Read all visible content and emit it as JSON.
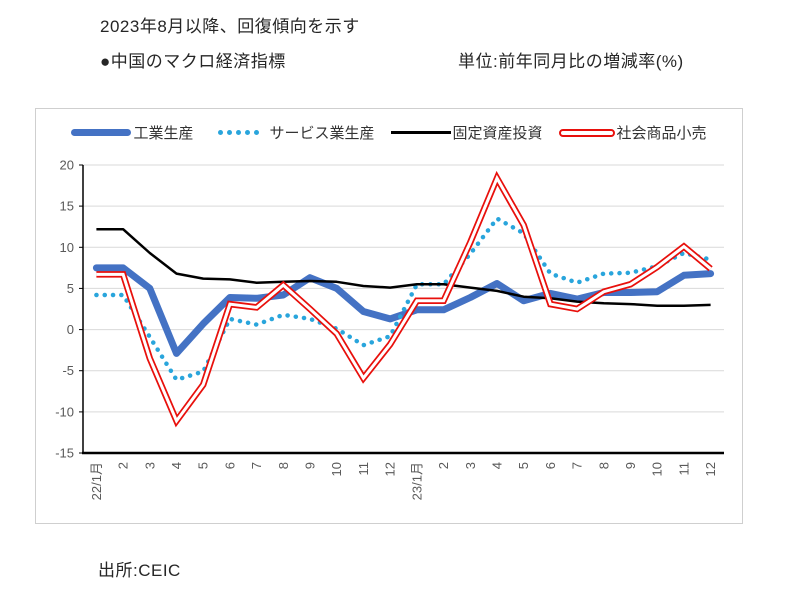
{
  "header": {
    "title": "2023年8月以降、回復傾向を示す",
    "subtitle": "●中国のマクロ経済指標",
    "unit": "単位:前年同月比の増減率(%)"
  },
  "footer": {
    "source": "出所:CEIC"
  },
  "colors": {
    "industrial": "#4472C4",
    "services": "#29A5DC",
    "fixed_asset": "#000000",
    "retail": "#E8100C",
    "gridline": "#D9D9D9",
    "axis": "#000000",
    "tick_label": "#595959"
  },
  "chart_data": {
    "type": "line",
    "title": "中国のマクロ経済指標",
    "ylabel": "前年同月比の増減率(%)",
    "ylim": [
      -15,
      20
    ],
    "ytick_step": 5,
    "grid": true,
    "legend_position": "top",
    "categories": [
      "22/1月",
      "2",
      "3",
      "4",
      "5",
      "6",
      "7",
      "8",
      "9",
      "10",
      "11",
      "12",
      "23/1月",
      "2",
      "3",
      "4",
      "5",
      "6",
      "7",
      "8",
      "9",
      "10",
      "11",
      "12"
    ],
    "series": [
      {
        "name": "工業生産",
        "style": "thick-solid",
        "color": "#4472C4",
        "values": [
          7.5,
          7.5,
          5.0,
          -2.9,
          0.7,
          3.9,
          3.8,
          4.2,
          6.3,
          5.0,
          2.2,
          1.3,
          2.4,
          2.4,
          3.9,
          5.6,
          3.5,
          4.4,
          3.7,
          4.5,
          4.5,
          4.6,
          6.6,
          6.8
        ]
      },
      {
        "name": "サービス業生産",
        "style": "dotted",
        "color": "#29A5DC",
        "values": [
          4.2,
          4.2,
          -0.9,
          -6.1,
          -5.1,
          1.3,
          0.6,
          1.8,
          1.3,
          0.1,
          -1.9,
          -0.8,
          5.5,
          5.5,
          9.2,
          13.5,
          11.7,
          6.8,
          5.7,
          6.8,
          6.9,
          7.7,
          9.3,
          8.5
        ]
      },
      {
        "name": "固定資産投資",
        "style": "solid",
        "color": "#000000",
        "values": [
          12.2,
          12.2,
          9.3,
          6.8,
          6.2,
          6.1,
          5.7,
          5.8,
          5.9,
          5.8,
          5.3,
          5.1,
          5.5,
          5.5,
          5.1,
          4.7,
          4.0,
          3.8,
          3.4,
          3.2,
          3.1,
          2.9,
          2.9,
          3.0
        ]
      },
      {
        "name": "社会商品小売",
        "style": "double-outline",
        "color": "#E8100C",
        "values": [
          6.7,
          6.7,
          -3.5,
          -11.1,
          -6.7,
          3.1,
          2.7,
          5.4,
          2.5,
          -0.5,
          -5.9,
          -1.8,
          3.5,
          3.5,
          10.6,
          18.4,
          12.7,
          3.1,
          2.5,
          4.6,
          5.5,
          7.6,
          10.1,
          7.4
        ]
      }
    ]
  }
}
